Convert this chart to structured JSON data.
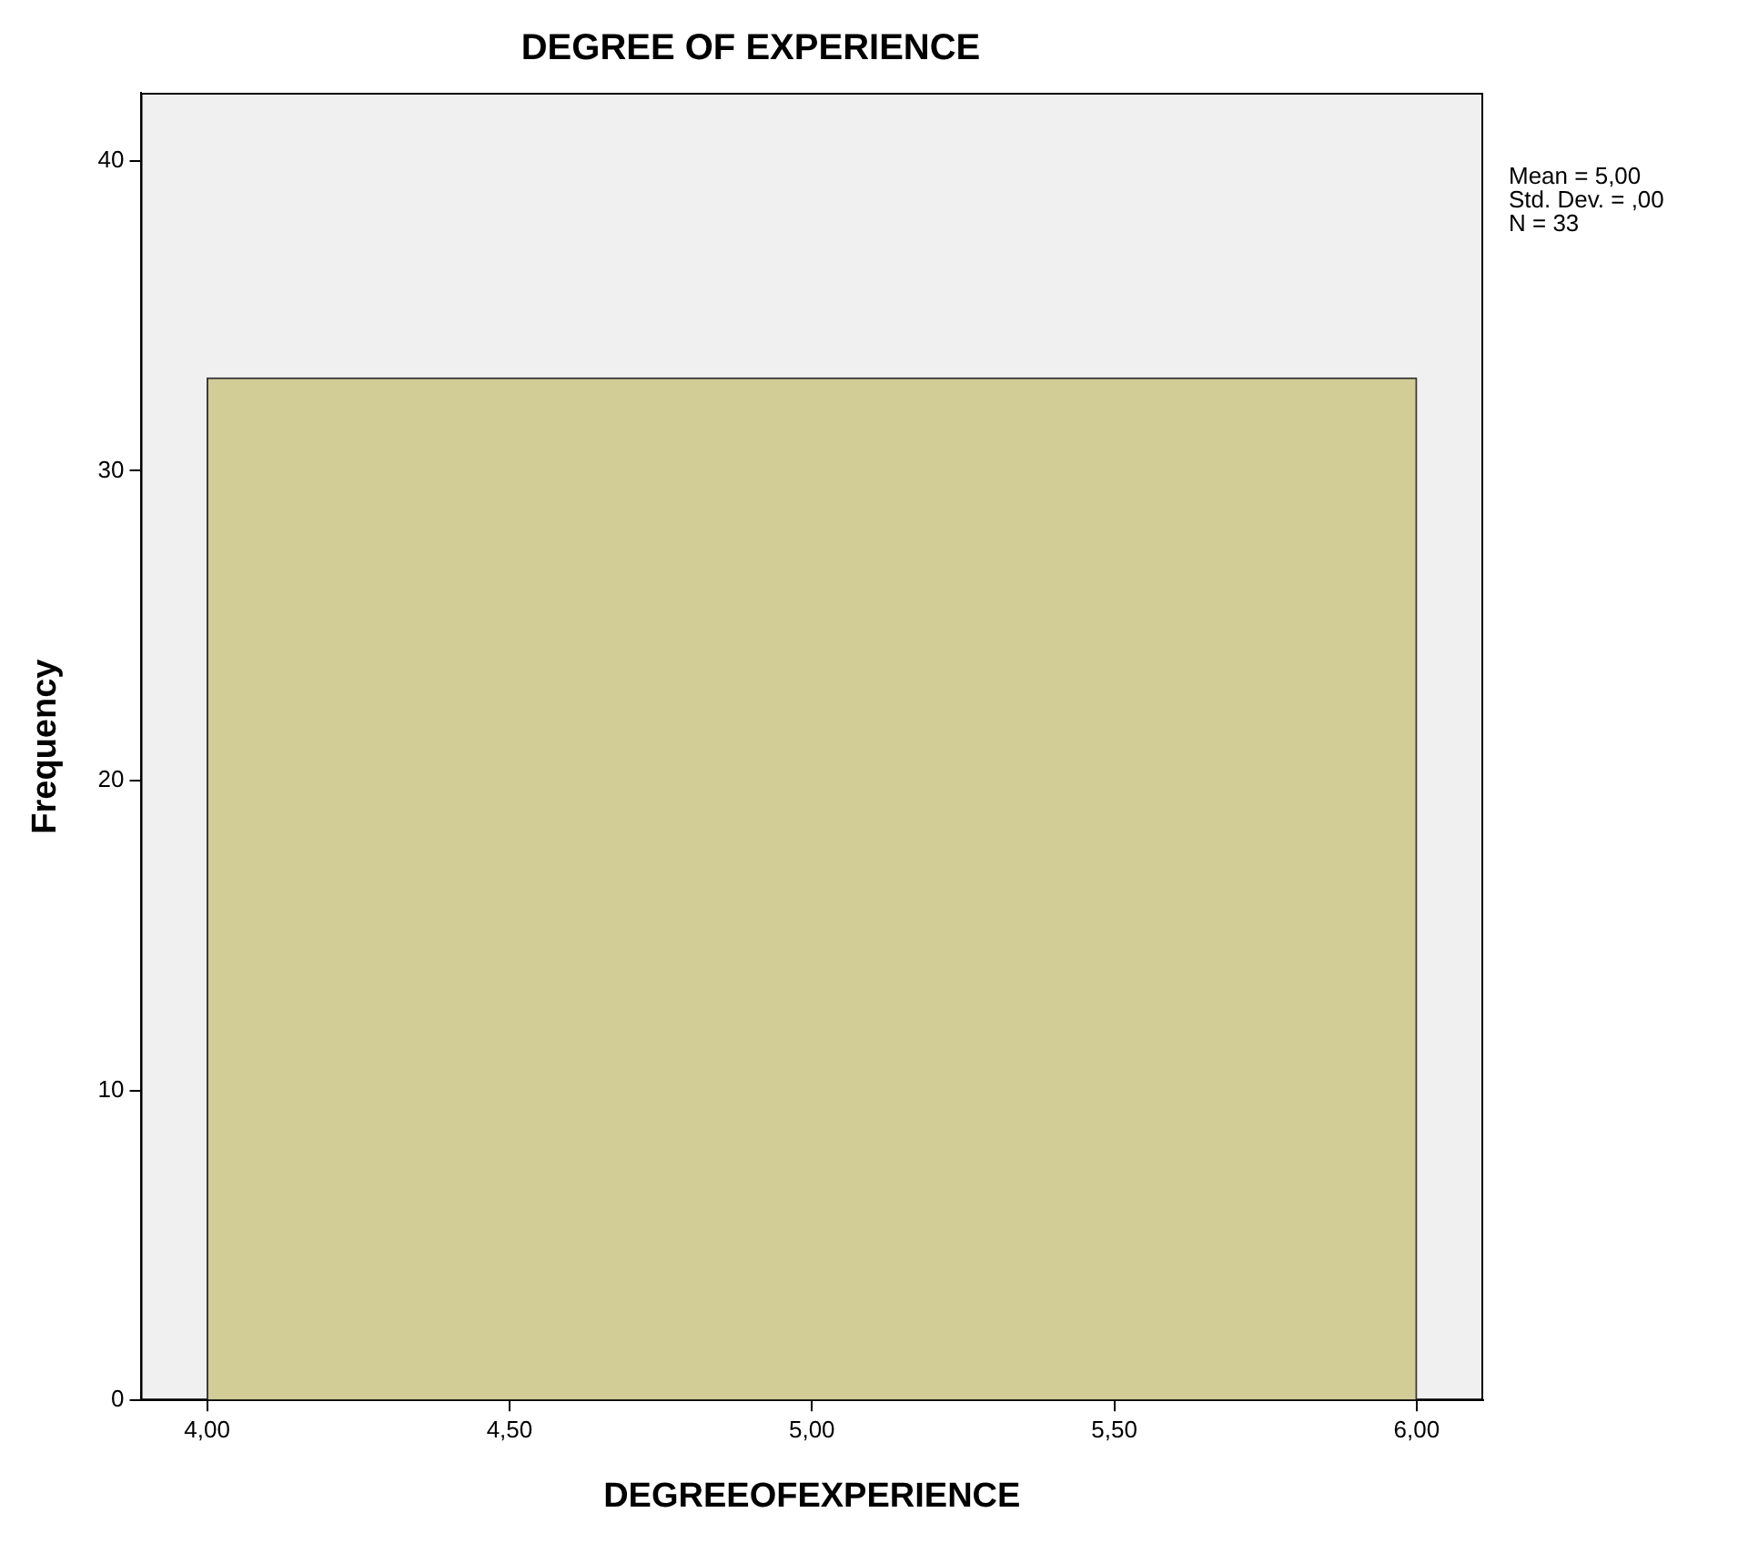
{
  "chart_data": {
    "type": "histogram",
    "title": "DEGREE OF EXPERIENCE",
    "xlabel": "DEGREEOFEXPERIENCE",
    "ylabel": "Frequency",
    "bins": [
      4,
      6
    ],
    "values": [
      33
    ],
    "color": "#d2cc96",
    "xlim": [
      3.89,
      6.11
    ],
    "xticks": [
      {
        "value": 4,
        "label": "4,00"
      },
      {
        "value": 4.5,
        "label": "4,50"
      },
      {
        "value": 5,
        "label": "5,00"
      },
      {
        "value": 5.5,
        "label": "5,50"
      },
      {
        "value": 6,
        "label": "6,00"
      }
    ],
    "ylim": [
      0,
      42.2
    ],
    "yticks": [
      0,
      10,
      20,
      30,
      40
    ],
    "annotations": [
      "Mean = 5,00",
      "Std. Dev. = ,00",
      "N = 33"
    ],
    "grid": false,
    "legend": false
  }
}
